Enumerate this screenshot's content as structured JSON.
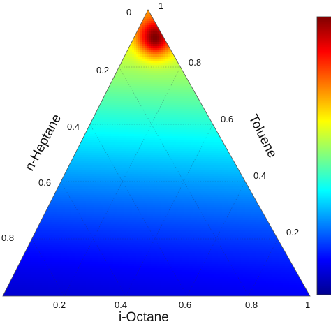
{
  "chart_data": {
    "type": "heatmap",
    "subtype": "ternary-contour",
    "title": "",
    "colormap": "jet",
    "colorbar": {
      "visible": true,
      "placement": "right",
      "tick_labels": []
    },
    "grid": true,
    "axes": {
      "left": {
        "label": "n-Heptane",
        "ticks": [
          "0",
          "0.2",
          "0.4",
          "0.6",
          "0.8"
        ]
      },
      "right": {
        "label": "Toluene",
        "ticks": [
          "1",
          "0.8",
          "0.6",
          "0.4",
          "0.2"
        ]
      },
      "bottom": {
        "label": "i-Octane",
        "ticks": [
          "0.2",
          "0.4",
          "0.6",
          "0.8",
          "1"
        ]
      }
    },
    "field": {
      "description_levels": "relative intensity 0 (blue) to 1 (red)",
      "max_near": {
        "toluene": 0.92,
        "n_heptane": 0.05,
        "i_octane": 0.03,
        "level": 1.0
      },
      "min_near": {
        "toluene": 0.0,
        "n_heptane": 0.5,
        "i_octane": 0.5,
        "level": 0.12
      }
    }
  }
}
